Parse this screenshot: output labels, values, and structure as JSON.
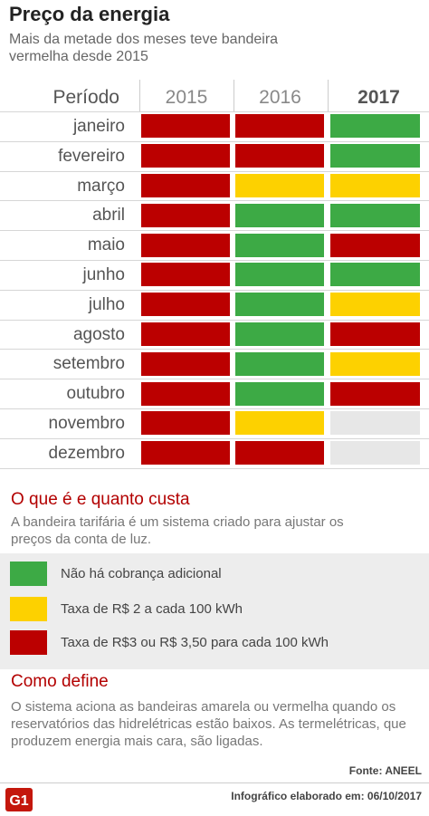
{
  "title": "Preço da energia",
  "subtitle": "Mais da metade dos meses teve bandeira vermelha desde 2015",
  "table": {
    "period_label": "Período",
    "years": [
      "2015",
      "2016",
      "2017"
    ]
  },
  "chart_data": {
    "type": "table",
    "columns": [
      "2015",
      "2016",
      "2017"
    ],
    "months": [
      "janeiro",
      "fevereiro",
      "março",
      "abril",
      "maio",
      "junho",
      "julho",
      "agosto",
      "setembro",
      "outubro",
      "novembro",
      "dezembro"
    ],
    "status": [
      [
        "red",
        "red",
        "green"
      ],
      [
        "red",
        "red",
        "green"
      ],
      [
        "red",
        "yellow",
        "yellow"
      ],
      [
        "red",
        "green",
        "green"
      ],
      [
        "red",
        "green",
        "red"
      ],
      [
        "red",
        "green",
        "green"
      ],
      [
        "red",
        "green",
        "yellow"
      ],
      [
        "red",
        "green",
        "red"
      ],
      [
        "red",
        "green",
        "yellow"
      ],
      [
        "red",
        "green",
        "red"
      ],
      [
        "red",
        "yellow",
        "none"
      ],
      [
        "red",
        "red",
        "none"
      ]
    ]
  },
  "colors": {
    "green": "#3daa45",
    "yellow": "#fdd100",
    "red": "#bb0000",
    "none": "#e7e7e7"
  },
  "section1": {
    "heading": "O que é e quanto custa",
    "text": "A bandeira tarifária é um sistema criado para ajustar os preços da conta de luz."
  },
  "legend": [
    {
      "color": "green",
      "label": "Não há cobrança adicional"
    },
    {
      "color": "yellow",
      "label": "Taxa de R$ 2 a cada 100 kWh"
    },
    {
      "color": "red",
      "label": "Taxa de R$3 ou R$ 3,50 para cada 100 kWh"
    }
  ],
  "section2": {
    "heading": "Como define",
    "text": "O sistema aciona as bandeiras amarela ou vermelha quando os reservatórios das hidrelétricas estão baixos. As termelétricas, que produzem energia mais cara, são ligadas."
  },
  "footer": {
    "source": "Fonte: ANEEL",
    "credit": "Infográfico elaborado em: 06/10/2017",
    "logo_text": "G1"
  }
}
